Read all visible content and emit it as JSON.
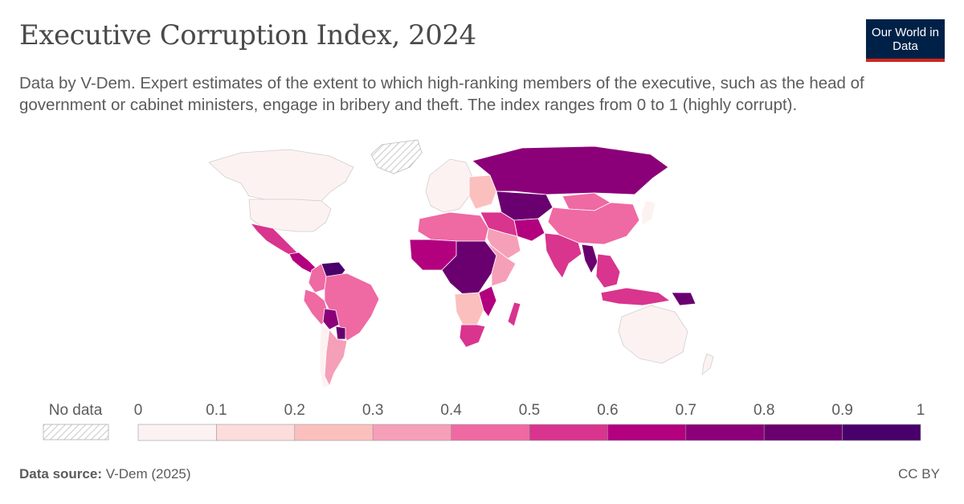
{
  "header": {
    "title": "Executive Corruption Index, 2024",
    "subtitle": "Data by V-Dem. Expert estimates of the extent to which high-ranking members of the executive, such as the head of government or cabinet ministers, engage in bribery and theft. The index ranges from 0 to 1 (highly corrupt).",
    "logo_text": "Our World in Data"
  },
  "legend": {
    "no_data_label": "No data",
    "ticks": [
      "0",
      "0.1",
      "0.2",
      "0.3",
      "0.4",
      "0.5",
      "0.6",
      "0.7",
      "0.8",
      "0.9",
      "1"
    ],
    "bins": [
      {
        "min": 0,
        "max": 0.1,
        "color": "#fdf2f2"
      },
      {
        "min": 0.1,
        "max": 0.2,
        "color": "#fcdcdc"
      },
      {
        "min": 0.2,
        "max": 0.3,
        "color": "#fbc0be"
      },
      {
        "min": 0.3,
        "max": 0.4,
        "color": "#f69fb8"
      },
      {
        "min": 0.4,
        "max": 0.5,
        "color": "#ef69a3"
      },
      {
        "min": 0.5,
        "max": 0.6,
        "color": "#d9348e"
      },
      {
        "min": 0.6,
        "max": 0.7,
        "color": "#b2007f"
      },
      {
        "min": 0.7,
        "max": 0.8,
        "color": "#8b0078"
      },
      {
        "min": 0.8,
        "max": 0.9,
        "color": "#6a006f"
      },
      {
        "min": 0.9,
        "max": 1,
        "color": "#49006a"
      }
    ]
  },
  "map_regions": [
    {
      "name": "Canada",
      "bin": 0
    },
    {
      "name": "United States",
      "bin": 0
    },
    {
      "name": "Mexico",
      "bin": 5
    },
    {
      "name": "Central America",
      "bin": 6
    },
    {
      "name": "Venezuela",
      "bin": 9
    },
    {
      "name": "Colombia",
      "bin": 4
    },
    {
      "name": "Peru",
      "bin": 4
    },
    {
      "name": "Brazil",
      "bin": 4
    },
    {
      "name": "Bolivia",
      "bin": 7
    },
    {
      "name": "Paraguay",
      "bin": 8
    },
    {
      "name": "Argentina",
      "bin": 3
    },
    {
      "name": "Chile",
      "bin": 0
    },
    {
      "name": "Western Europe",
      "bin": 0
    },
    {
      "name": "Eastern Europe",
      "bin": 2
    },
    {
      "name": "Russia",
      "bin": 7
    },
    {
      "name": "Central Asia",
      "bin": 8
    },
    {
      "name": "Mongolia",
      "bin": 4
    },
    {
      "name": "China",
      "bin": 4
    },
    {
      "name": "India",
      "bin": 5
    },
    {
      "name": "Myanmar",
      "bin": 8
    },
    {
      "name": "Southeast Asia",
      "bin": 5
    },
    {
      "name": "Indonesia",
      "bin": 5
    },
    {
      "name": "Papua New Guinea",
      "bin": 8
    },
    {
      "name": "Japan",
      "bin": 0
    },
    {
      "name": "Australia",
      "bin": 0
    },
    {
      "name": "Middle East",
      "bin": 5
    },
    {
      "name": "Saudi Arabia",
      "bin": 3
    },
    {
      "name": "Iran",
      "bin": 6
    },
    {
      "name": "North Africa",
      "bin": 4
    },
    {
      "name": "West Africa",
      "bin": 6
    },
    {
      "name": "Central Africa",
      "bin": 8
    },
    {
      "name": "East Africa",
      "bin": 3
    },
    {
      "name": "Southern Africa",
      "bin": 2
    },
    {
      "name": "South Africa",
      "bin": 5
    },
    {
      "name": "Mozambique",
      "bin": 6
    },
    {
      "name": "Madagascar",
      "bin": 5
    },
    {
      "name": "Greenland",
      "bin": -1
    }
  ],
  "footer": {
    "source_label": "Data source:",
    "source_value": "V-Dem (2025)",
    "license": "CC BY"
  }
}
